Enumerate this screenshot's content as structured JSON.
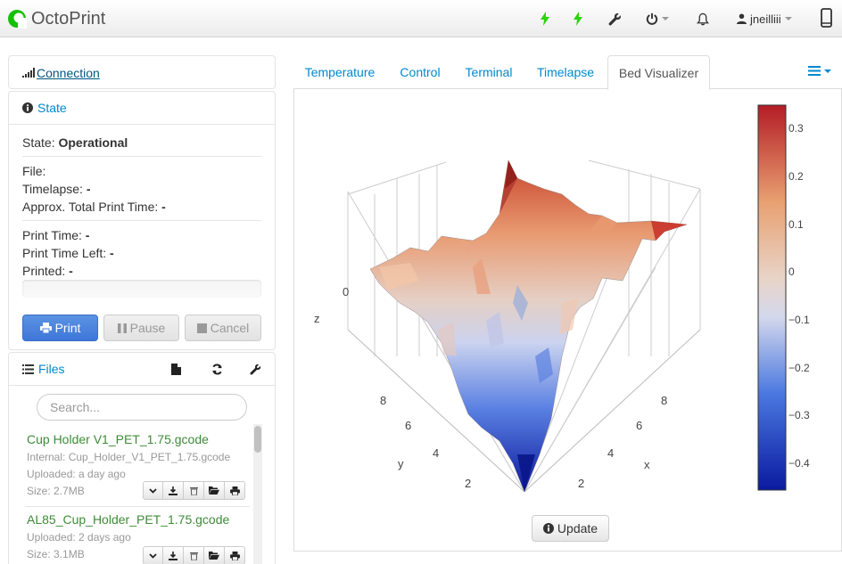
{
  "navbar": {
    "brand": "OctoPrint",
    "user": "jneilliii"
  },
  "connection": {
    "title": "Connection"
  },
  "state": {
    "title": "State",
    "state_label": "State:",
    "state_value": "Operational",
    "file_label": "File:",
    "timelapse_label": "Timelapse:",
    "timelapse_value": "-",
    "approx_label": "Approx. Total Print Time:",
    "approx_value": "-",
    "print_time_label": "Print Time:",
    "print_time_value": "-",
    "time_left_label": "Print Time Left:",
    "time_left_value": "-",
    "printed_label": "Printed:",
    "printed_value": "-",
    "progress": 0,
    "buttons": {
      "print": "Print",
      "pause": "Pause",
      "cancel": "Cancel"
    }
  },
  "files": {
    "title": "Files",
    "search_placeholder": "Search...",
    "items": [
      {
        "name": "Cup Holder V1_PET_1.75.gcode",
        "internal": "Internal: Cup_Holder_V1_PET_1.75.gcode",
        "uploaded": "Uploaded: a day ago",
        "size": "Size: 2.7MB"
      },
      {
        "name": "AL85_Cup_Holder_PET_1.75.gcode",
        "uploaded": "Uploaded: 2 days ago",
        "size": "Size: 3.1MB"
      }
    ]
  },
  "tabs": [
    "Temperature",
    "Control",
    "Terminal",
    "Timelapse",
    "Bed Visualizer"
  ],
  "active_tab": "Bed Visualizer",
  "bed_visualizer": {
    "update_button": "Update",
    "z_axis_label": "z",
    "y_axis_label": "y",
    "x_axis_label": "x",
    "z_tick": "0",
    "y_ticks": [
      "8",
      "6",
      "4",
      "2"
    ],
    "x_ticks": [
      "8",
      "6",
      "4",
      "2"
    ],
    "colorbar_ticks": [
      "0.3",
      "0.2",
      "0.1",
      "0",
      "−0.1",
      "−0.2",
      "−0.3",
      "−0.4"
    ],
    "colorscale": [
      "#0a1aa0",
      "#4a78e0",
      "#dcdce8",
      "#e8a070",
      "#b41c26"
    ]
  },
  "colors": {
    "link": "#0088cc",
    "file_name": "#3d8b37",
    "primary_button": "#4a82de"
  }
}
